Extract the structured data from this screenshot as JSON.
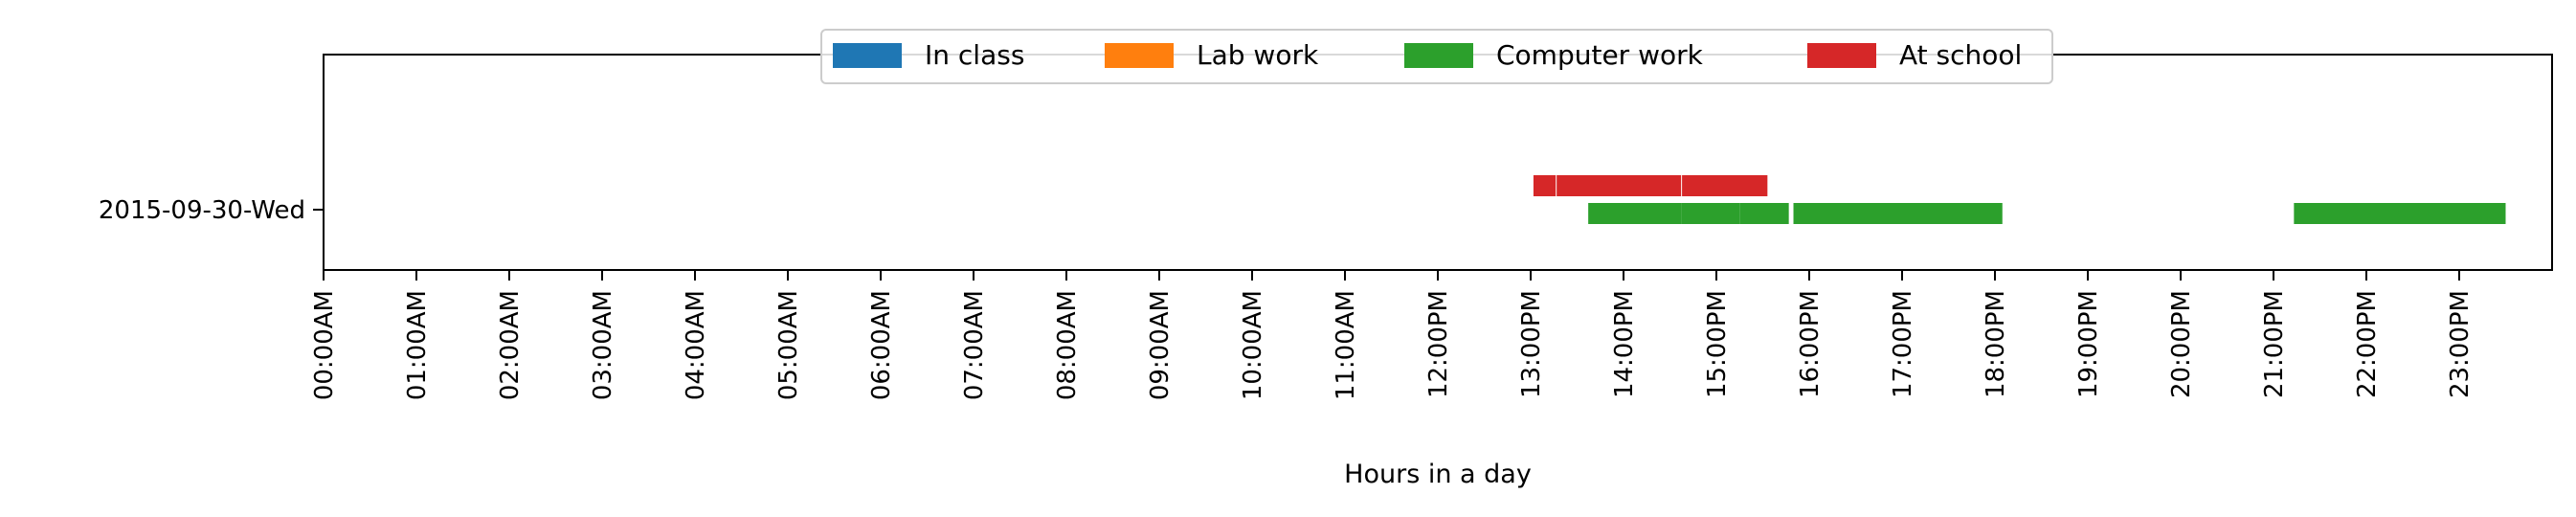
{
  "chart_data": {
    "type": "timeline",
    "title": "",
    "xlabel": "Hours in a day",
    "ylabel": "",
    "xlim": [
      0,
      24
    ],
    "y_categories": [
      "2015-09-30-Wed"
    ],
    "x_ticks": [
      {
        "value": 0,
        "label": "00:00AM"
      },
      {
        "value": 1,
        "label": "01:00AM"
      },
      {
        "value": 2,
        "label": "02:00AM"
      },
      {
        "value": 3,
        "label": "03:00AM"
      },
      {
        "value": 4,
        "label": "04:00AM"
      },
      {
        "value": 5,
        "label": "05:00AM"
      },
      {
        "value": 6,
        "label": "06:00AM"
      },
      {
        "value": 7,
        "label": "07:00AM"
      },
      {
        "value": 8,
        "label": "08:00AM"
      },
      {
        "value": 9,
        "label": "09:00AM"
      },
      {
        "value": 10,
        "label": "10:00AM"
      },
      {
        "value": 11,
        "label": "11:00AM"
      },
      {
        "value": 12,
        "label": "12:00PM"
      },
      {
        "value": 13,
        "label": "13:00PM"
      },
      {
        "value": 14,
        "label": "14:00PM"
      },
      {
        "value": 15,
        "label": "15:00PM"
      },
      {
        "value": 16,
        "label": "16:00PM"
      },
      {
        "value": 17,
        "label": "17:00PM"
      },
      {
        "value": 18,
        "label": "18:00PM"
      },
      {
        "value": 19,
        "label": "19:00PM"
      },
      {
        "value": 20,
        "label": "20:00PM"
      },
      {
        "value": 21,
        "label": "21:00PM"
      },
      {
        "value": 22,
        "label": "22:00PM"
      },
      {
        "value": 23,
        "label": "23:00PM"
      }
    ],
    "legend": {
      "placement": "top-center",
      "entries": [
        {
          "name": "In class",
          "color": "#1f77b4"
        },
        {
          "name": "Lab work",
          "color": "#ff7f0e"
        },
        {
          "name": "Computer work",
          "color": "#2ca02c"
        },
        {
          "name": "At school",
          "color": "#d62728"
        }
      ]
    },
    "series": [
      {
        "name": "In class",
        "color": "#1f77b4",
        "intervals": []
      },
      {
        "name": "Lab work",
        "color": "#ff7f0e",
        "intervals": []
      },
      {
        "name": "Computer work",
        "color": "#2ca02c",
        "intervals": [
          {
            "start": 13.62,
            "end": 14.62
          },
          {
            "start": 14.62,
            "end": 15.25
          },
          {
            "start": 15.25,
            "end": 15.78
          },
          {
            "start": 15.83,
            "end": 18.08
          },
          {
            "start": 21.22,
            "end": 23.5
          }
        ]
      },
      {
        "name": "At school",
        "color": "#d62728",
        "intervals": [
          {
            "start": 13.03,
            "end": 13.27
          },
          {
            "start": 13.28,
            "end": 14.62
          },
          {
            "start": 14.63,
            "end": 15.55
          }
        ]
      }
    ]
  }
}
